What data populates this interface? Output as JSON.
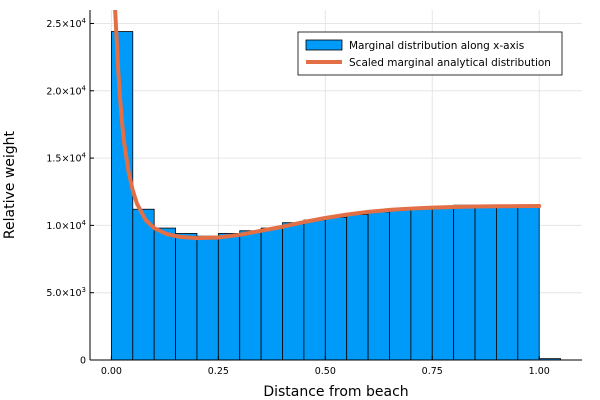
{
  "chart_data": {
    "type": "bar",
    "title": "",
    "xlabel": "Distance from beach",
    "ylabel": "Relative weight",
    "xlim": [
      -0.05,
      1.1
    ],
    "ylim": [
      0,
      26000
    ],
    "grid": true,
    "legend_position": "top-right",
    "x_ticks": [
      {
        "value": 0.0,
        "label": "0.00"
      },
      {
        "value": 0.25,
        "label": "0.25"
      },
      {
        "value": 0.5,
        "label": "0.50"
      },
      {
        "value": 0.75,
        "label": "0.75"
      },
      {
        "value": 1.0,
        "label": "1.00"
      }
    ],
    "y_ticks": [
      {
        "value": 0,
        "mantissa": "0",
        "exponent": ""
      },
      {
        "value": 5000,
        "mantissa": "5.0×10",
        "exponent": "3"
      },
      {
        "value": 10000,
        "mantissa": "1.0×10",
        "exponent": "4"
      },
      {
        "value": 15000,
        "mantissa": "1.5×10",
        "exponent": "4"
      },
      {
        "value": 20000,
        "mantissa": "2.0×10",
        "exponent": "4"
      },
      {
        "value": 25000,
        "mantissa": "2.5×10",
        "exponent": "4"
      }
    ],
    "bin_width": 0.05,
    "histogram": {
      "name": "Marginal distribution along x-axis",
      "color": "#009af9",
      "bins_start": [
        0.0,
        0.05,
        0.1,
        0.15,
        0.2,
        0.25,
        0.3,
        0.35,
        0.4,
        0.45,
        0.5,
        0.55,
        0.6,
        0.65,
        0.7,
        0.75,
        0.8,
        0.85,
        0.9,
        0.95,
        1.0
      ],
      "values": [
        24400,
        11200,
        9800,
        9400,
        9200,
        9400,
        9600,
        9800,
        10200,
        10400,
        10600,
        10800,
        11000,
        11200,
        11300,
        11400,
        11500,
        11500,
        11450,
        11400,
        100
      ]
    },
    "curve": {
      "name": "Scaled marginal analytical distribution",
      "color": "#e26f46",
      "x": [
        0.008,
        0.012,
        0.016,
        0.02,
        0.025,
        0.03,
        0.04,
        0.05,
        0.06,
        0.08,
        0.1,
        0.13,
        0.16,
        0.2,
        0.25,
        0.3,
        0.35,
        0.4,
        0.45,
        0.5,
        0.55,
        0.6,
        0.65,
        0.7,
        0.75,
        0.8,
        0.85,
        0.9,
        0.95,
        1.0
      ],
      "y": [
        26500,
        24000,
        21500,
        19500,
        17600,
        16100,
        14000,
        12600,
        11600,
        10400,
        9800,
        9350,
        9150,
        9050,
        9100,
        9300,
        9600,
        9900,
        10250,
        10550,
        10800,
        11000,
        11150,
        11250,
        11320,
        11370,
        11400,
        11420,
        11430,
        11440
      ]
    }
  }
}
